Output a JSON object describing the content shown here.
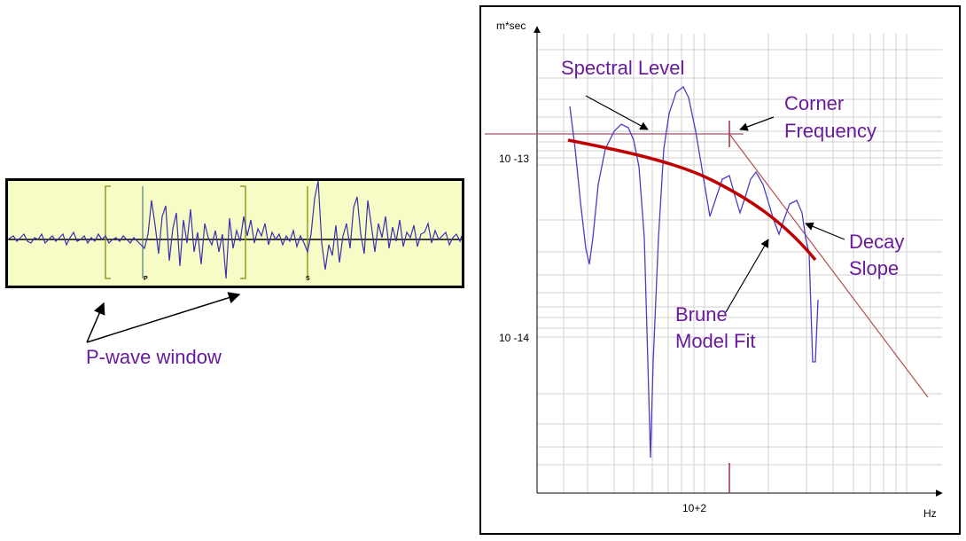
{
  "seismogram": {
    "p_marker": "P",
    "s_marker": "S",
    "p_window_label": "P-wave window"
  },
  "spectrum": {
    "y_unit": "m*sec",
    "x_unit": "Hz",
    "y_tick_1": "10 -13",
    "y_tick_2": "10 -14",
    "x_tick": "10+2",
    "annotations": {
      "spectral_level": "Spectral Level",
      "corner_line1": "Corner",
      "corner_line2": "Frequency",
      "decay_line1": "Decay",
      "decay_line2": "Slope",
      "brune_line1": "Brune",
      "brune_line2": "Model Fit"
    }
  },
  "colors": {
    "waveform": "#3b2fb0",
    "window_marker": "#8aa024",
    "annotation_text": "#6a1b9a",
    "brune_fit": "#c00000",
    "asymptote": "#b05050",
    "grid": "#d0d0d0"
  }
}
